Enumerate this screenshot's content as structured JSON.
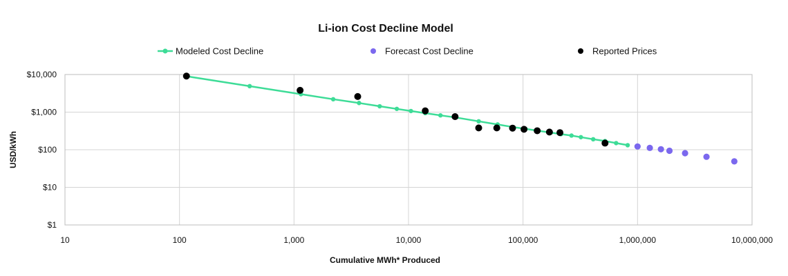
{
  "chart_data": {
    "type": "scatter",
    "title": "Li-ion Cost Decline Model",
    "xlabel": "Cumulative MWh* Produced",
    "ylabel": "USD/kWh",
    "xscale": "log",
    "yscale": "log",
    "xlim": [
      10,
      10000000
    ],
    "ylim": [
      1,
      10000
    ],
    "x_tick_labels": [
      "10",
      "100",
      "1,000",
      "10,000",
      "100,000",
      "1,000,000",
      "10,000,000"
    ],
    "y_tick_labels": [
      "$1",
      "$10",
      "$100",
      "$1,000",
      "$10,000"
    ],
    "grid": true,
    "legend_position": "top",
    "series": [
      {
        "name": "Modeled Cost Decline",
        "color": "#3ddc97",
        "style": "line-marker",
        "points": [
          [
            115,
            9000
          ],
          [
            410,
            4900
          ],
          [
            1150,
            3000
          ],
          [
            2200,
            2200
          ],
          [
            3700,
            1750
          ],
          [
            5600,
            1430
          ],
          [
            7900,
            1220
          ],
          [
            10500,
            1070
          ],
          [
            14000,
            940
          ],
          [
            19000,
            820
          ],
          [
            26000,
            720
          ],
          [
            41000,
            570
          ],
          [
            60000,
            470
          ],
          [
            82000,
            400
          ],
          [
            105000,
            360
          ],
          [
            135000,
            320
          ],
          [
            175000,
            285
          ],
          [
            215000,
            260
          ],
          [
            265000,
            238
          ],
          [
            320000,
            216
          ],
          [
            410000,
            190
          ],
          [
            520000,
            170
          ],
          [
            650000,
            150
          ],
          [
            820000,
            132
          ]
        ]
      },
      {
        "name": "Forecast Cost Decline",
        "color": "#7b68ee",
        "style": "marker",
        "points": [
          [
            1000000,
            122
          ],
          [
            1280000,
            112
          ],
          [
            1600000,
            103
          ],
          [
            1900000,
            94
          ],
          [
            2600000,
            81
          ],
          [
            4000000,
            65
          ],
          [
            7000000,
            49
          ]
        ]
      },
      {
        "name": "Reported Prices",
        "color": "#000000",
        "style": "marker",
        "points": [
          [
            115,
            9100
          ],
          [
            1130,
            3800
          ],
          [
            3600,
            2600
          ],
          [
            14000,
            1080
          ],
          [
            25500,
            760
          ],
          [
            41000,
            380
          ],
          [
            59000,
            380
          ],
          [
            81000,
            375
          ],
          [
            102000,
            350
          ],
          [
            133000,
            320
          ],
          [
            170000,
            295
          ],
          [
            210000,
            285
          ],
          [
            520000,
            150
          ]
        ]
      }
    ]
  }
}
